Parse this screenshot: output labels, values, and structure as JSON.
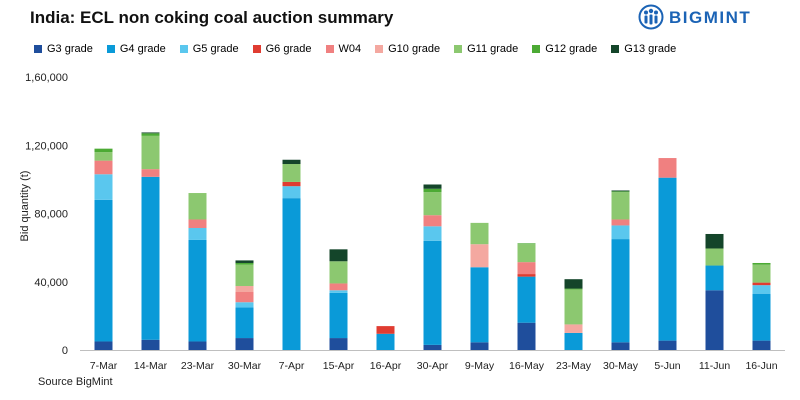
{
  "title": "India: ECL non coking coal auction summary",
  "brand": {
    "name": "BIGMINT",
    "color": "#1b63b5"
  },
  "source": "Source BigMint",
  "chart_data": {
    "type": "bar",
    "stacked": true,
    "title": "India: ECL non coking coal auction summary",
    "xlabel": "",
    "ylabel": "Bid quantity (t)",
    "ylim": [
      0,
      160000
    ],
    "yticks": [
      "0",
      "40,000",
      "80,000",
      "1,20,000",
      "1,60,000"
    ],
    "ytick_values": [
      0,
      40000,
      80000,
      120000,
      160000
    ],
    "legend_position": "top",
    "grid": false,
    "categories": [
      "7-Mar",
      "14-Mar",
      "23-Mar",
      "30-Mar",
      "7-Apr",
      "15-Apr",
      "16-Apr",
      "30-Apr",
      "9-May",
      "16-May",
      "23-May",
      "30-May",
      "5-Jun",
      "11-Jun",
      "16-Jun"
    ],
    "series": [
      {
        "name": "G3 grade",
        "color": "#1f4e9c",
        "values": [
          5000,
          6000,
          5000,
          7000,
          0,
          7000,
          0,
          3000,
          4500,
          16000,
          0,
          4500,
          5500,
          35000,
          5500
        ]
      },
      {
        "name": "G4 grade",
        "color": "#0a9ad8",
        "values": [
          83000,
          95500,
          59500,
          18000,
          89000,
          26500,
          9500,
          61000,
          44000,
          27000,
          10000,
          60500,
          95500,
          14500,
          27500
        ]
      },
      {
        "name": "G5 grade",
        "color": "#5ac7ee",
        "values": [
          15000,
          0,
          7000,
          3000,
          7000,
          1500,
          0,
          8500,
          0,
          0,
          0,
          8000,
          0,
          0,
          5000
        ]
      },
      {
        "name": "G6 grade",
        "color": "#e03c31",
        "values": [
          0,
          0,
          0,
          0,
          2500,
          0,
          4500,
          0,
          0,
          1500,
          0,
          0,
          0,
          0,
          1500
        ]
      },
      {
        "name": "W04",
        "color": "#f08080",
        "values": [
          8000,
          4500,
          5000,
          6000,
          0,
          4000,
          0,
          6500,
          0,
          7000,
          0,
          3500,
          11500,
          0,
          0
        ]
      },
      {
        "name": "G10 grade",
        "color": "#f4a8a0",
        "values": [
          0,
          0,
          0,
          3500,
          0,
          0,
          0,
          0,
          13500,
          0,
          5000,
          0,
          0,
          0,
          0
        ]
      },
      {
        "name": "G11 grade",
        "color": "#8cc870",
        "values": [
          5000,
          19500,
          15500,
          12500,
          10500,
          13000,
          0,
          13500,
          12500,
          10500,
          20500,
          16000,
          0,
          10000,
          10500
        ]
      },
      {
        "name": "G12 grade",
        "color": "#4caa34",
        "values": [
          2000,
          1500,
          0,
          1000,
          0,
          0,
          0,
          2000,
          0,
          500,
          500,
          500,
          0,
          0,
          1000
        ]
      },
      {
        "name": "G13 grade",
        "color": "#14452a",
        "values": [
          0,
          500,
          0,
          1500,
          2500,
          7000,
          0,
          2500,
          0,
          0,
          5500,
          500,
          0,
          8500,
          0
        ]
      }
    ]
  }
}
